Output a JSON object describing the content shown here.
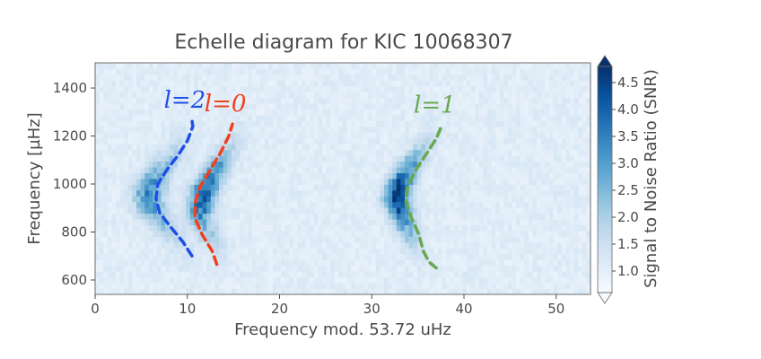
{
  "chart_data": {
    "type": "heatmap",
    "title": "Echelle diagram for KIC 10068307",
    "xlabel": "Frequency mod. 53.72 uHz",
    "ylabel": "Frequency [µHz]",
    "colorbar_label": "Signal to Noise Ratio (SNR)",
    "xlim": [
      0,
      53.72
    ],
    "ylim": [
      540,
      1505
    ],
    "x_ticks": [
      0,
      10,
      20,
      30,
      40,
      50
    ],
    "y_ticks": [
      600,
      800,
      1000,
      1200,
      1400
    ],
    "colorbar_range": [
      0.6,
      4.8
    ],
    "colorbar_ticks": [
      "1.0",
      "1.5",
      "2.0",
      "2.5",
      "3.0",
      "3.5",
      "4.0",
      "4.5"
    ],
    "colorbar_extend": "both",
    "colormap": "Blues",
    "ridges": [
      {
        "label": "l=2",
        "color": "#1f4fe6",
        "points": [
          [
            10.5,
            700
          ],
          [
            9.5,
            760
          ],
          [
            8.2,
            820
          ],
          [
            7.0,
            880
          ],
          [
            6.6,
            940
          ],
          [
            6.8,
            1000
          ],
          [
            7.8,
            1060
          ],
          [
            9.0,
            1120
          ],
          [
            10.0,
            1180
          ],
          [
            10.6,
            1240
          ],
          [
            10.5,
            1265
          ]
        ]
      },
      {
        "label": "l=0",
        "color": "#f0401c",
        "points": [
          [
            13.2,
            665
          ],
          [
            12.7,
            720
          ],
          [
            11.6,
            790
          ],
          [
            10.8,
            860
          ],
          [
            10.9,
            930
          ],
          [
            11.4,
            990
          ],
          [
            12.5,
            1060
          ],
          [
            13.6,
            1130
          ],
          [
            14.5,
            1200
          ],
          [
            14.9,
            1250
          ]
        ]
      },
      {
        "label": "l=1",
        "color": "#6aa84f",
        "points": [
          [
            37.0,
            650
          ],
          [
            36.2,
            675
          ],
          [
            35.6,
            720
          ],
          [
            35.1,
            790
          ],
          [
            34.3,
            860
          ],
          [
            33.7,
            930
          ],
          [
            33.9,
            990
          ],
          [
            34.8,
            1060
          ],
          [
            36.0,
            1130
          ],
          [
            37.0,
            1190
          ],
          [
            37.6,
            1245
          ]
        ]
      }
    ]
  }
}
